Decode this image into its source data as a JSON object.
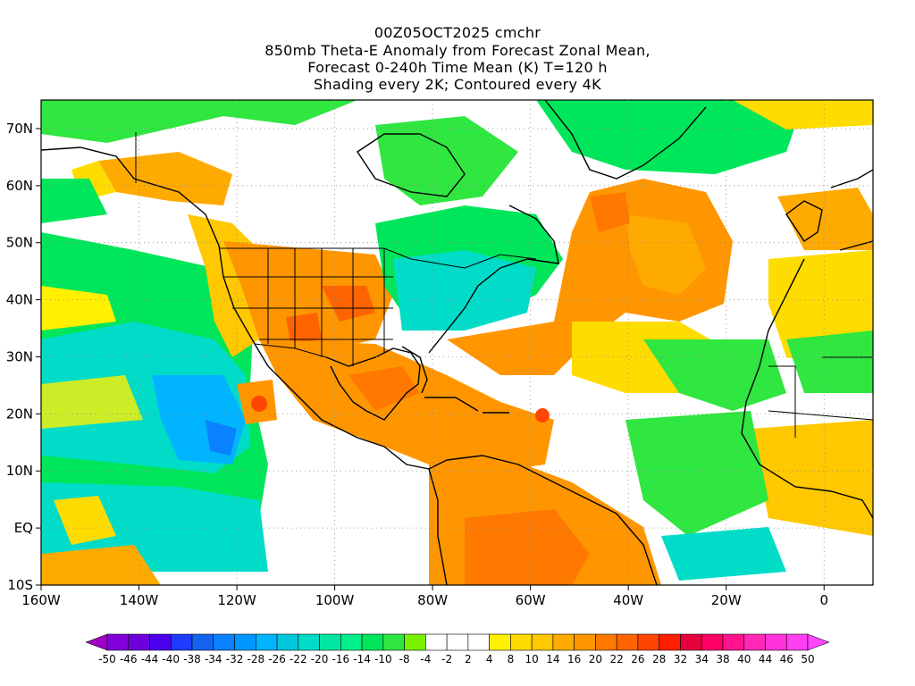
{
  "title": {
    "line1": "00Z05OCT2025 cmchr",
    "line2": "850mb Theta-E Anomaly from Forecast Zonal Mean,",
    "line3": "Forecast 0-240h Time Mean (K) T=120 h",
    "line4": "Shading every 2K; Contoured every 4K"
  },
  "map": {
    "lat_labels": [
      "70N",
      "60N",
      "50N",
      "40N",
      "30N",
      "20N",
      "10N",
      "EQ",
      "10S"
    ],
    "lat_values": [
      70,
      60,
      50,
      40,
      30,
      20,
      10,
      0,
      -10
    ],
    "lon_labels": [
      "160W",
      "140W",
      "120W",
      "100W",
      "80W",
      "60W",
      "40W",
      "20W",
      "0"
    ],
    "lon_values": [
      -160,
      -140,
      -120,
      -100,
      -80,
      -60,
      -40,
      -20,
      0
    ],
    "lon_range": [
      -160,
      10
    ],
    "lat_range": [
      -10,
      75
    ]
  },
  "colorbar": {
    "labels": [
      "-50",
      "-46",
      "-44",
      "-40",
      "-38",
      "-34",
      "-32",
      "-28",
      "-26",
      "-22",
      "-20",
      "-16",
      "-14",
      "-10",
      "-8",
      "-4",
      "-2",
      "2",
      "4",
      "8",
      "10",
      "14",
      "16",
      "20",
      "22",
      "26",
      "28",
      "32",
      "34",
      "38",
      "40",
      "44",
      "46",
      "50"
    ],
    "colors": [
      "#a000c8",
      "#8200dc",
      "#6e00dc",
      "#4b00f0",
      "#1e3cff",
      "#1464f0",
      "#0a82ff",
      "#0096ff",
      "#00b4ff",
      "#00c8dc",
      "#00dcc8",
      "#00e6a0",
      "#00f08c",
      "#00e65a",
      "#30e640",
      "#78f000",
      "#ffffff",
      "#ffffff",
      "#ffffff",
      "#fff000",
      "#ffdc00",
      "#ffc800",
      "#ffaa00",
      "#ff9600",
      "#ff7800",
      "#ff6400",
      "#ff4600",
      "#ff1e00",
      "#e6003c",
      "#ff0064",
      "#ff148c",
      "#ff28b4",
      "#ff32dc",
      "#ff40f0",
      "#ff46ff"
    ]
  }
}
